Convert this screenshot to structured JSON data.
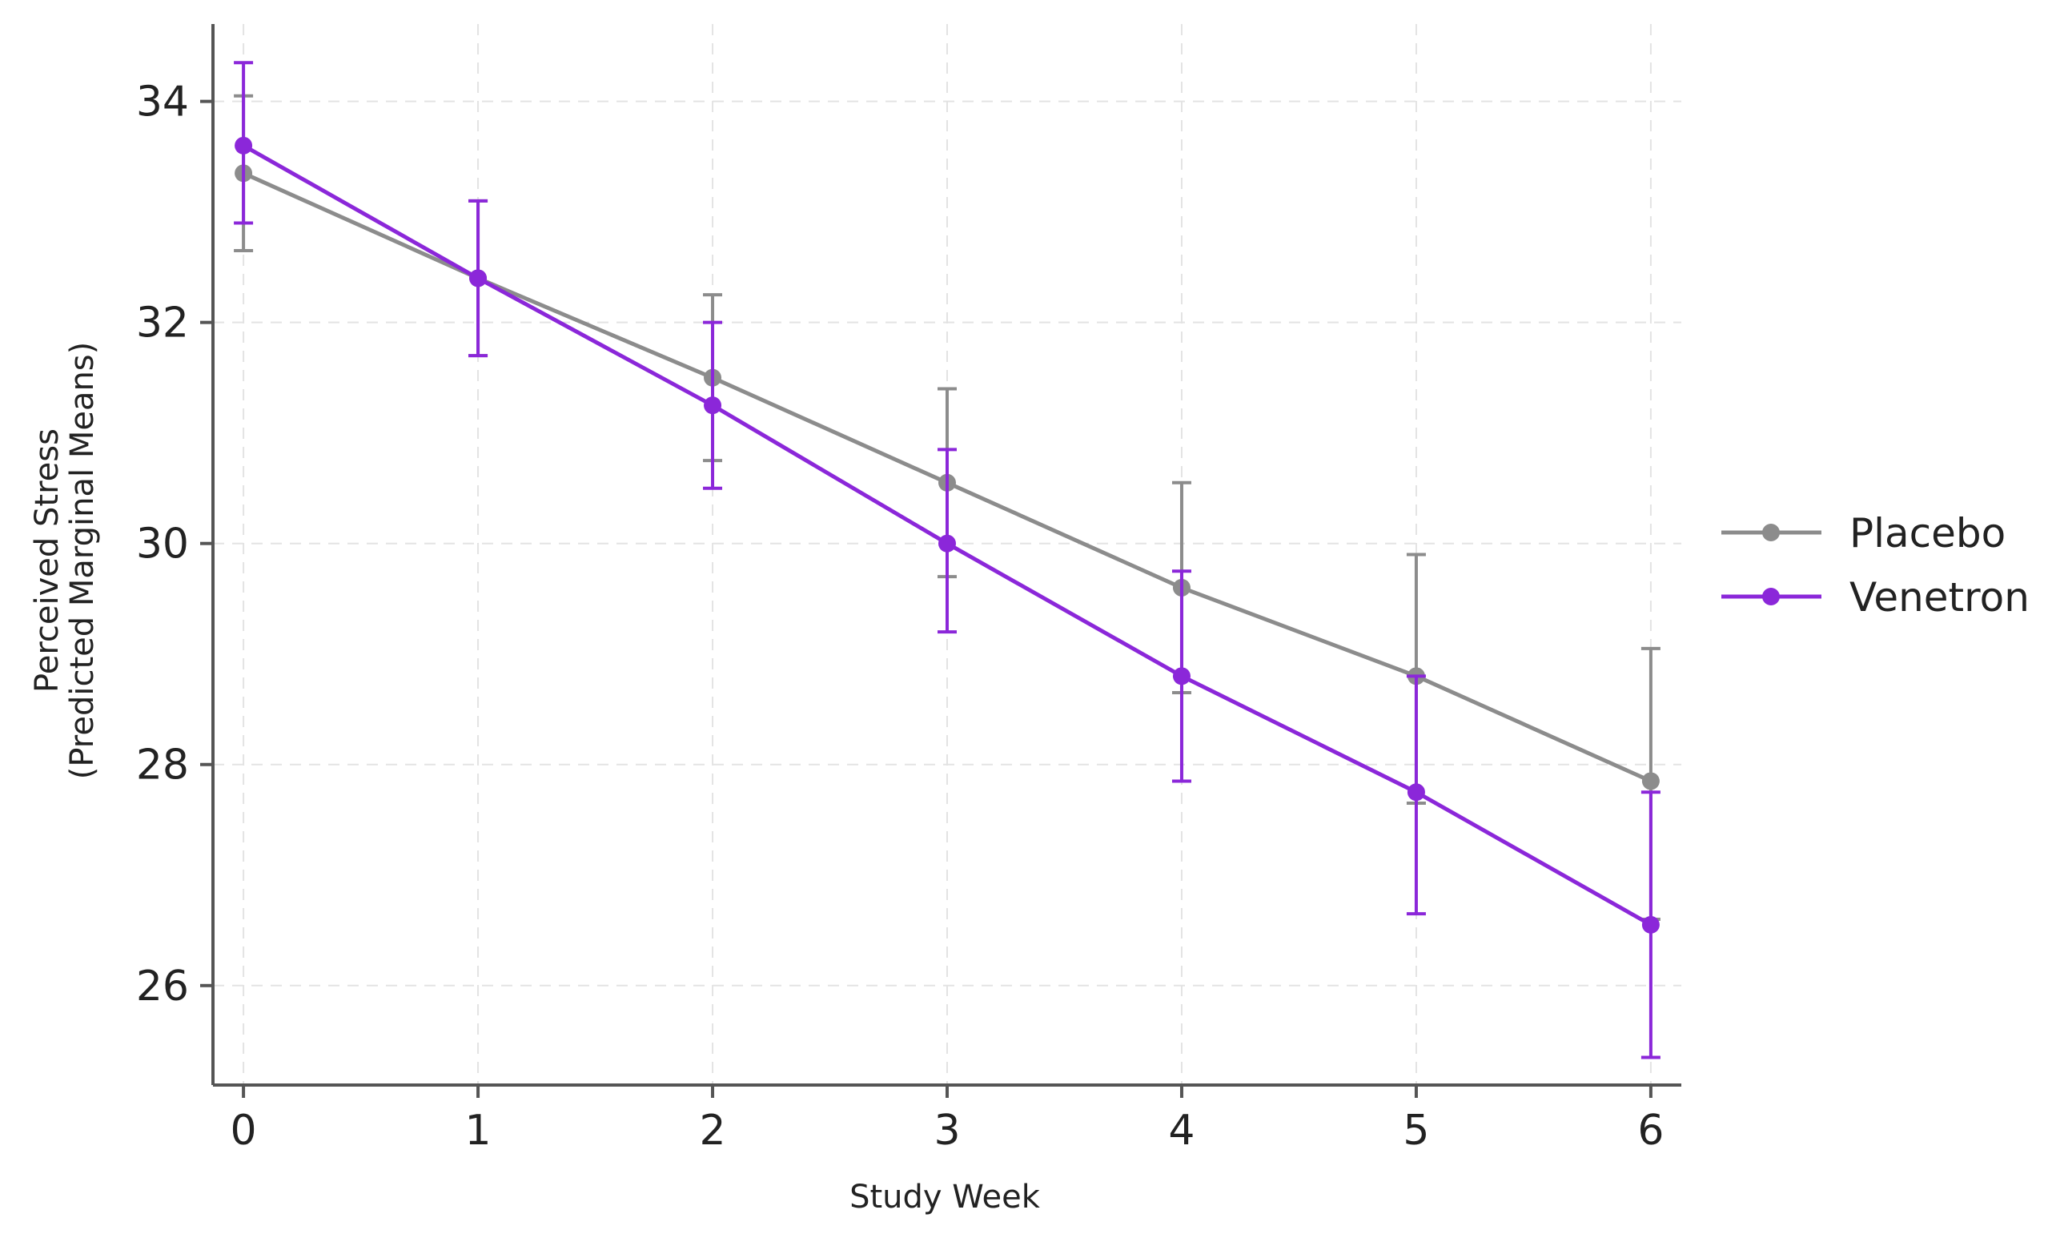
{
  "chart_data": {
    "type": "line",
    "title": "",
    "xlabel": "Study Week",
    "ylabel": [
      "Perceived Stress",
      "(Predicted Marginal Means)"
    ],
    "x": [
      0,
      1,
      2,
      3,
      4,
      5,
      6
    ],
    "xticks": [
      "0",
      "1",
      "2",
      "3",
      "4",
      "5",
      "6"
    ],
    "yticks": [
      "26",
      "28",
      "30",
      "32",
      "34"
    ],
    "ylim": [
      25.1,
      34.7
    ],
    "xlim": [
      -0.13,
      6.13
    ],
    "grid": true,
    "legend_position": "right",
    "series": [
      {
        "name": "Placebo",
        "color": "#8c8c8c",
        "values": [
          33.35,
          32.4,
          31.5,
          30.55,
          29.6,
          28.8,
          27.85
        ],
        "ci_low": [
          32.65,
          31.7,
          30.75,
          29.7,
          28.65,
          27.65,
          26.6
        ],
        "ci_high": [
          34.05,
          33.1,
          32.25,
          31.4,
          30.55,
          29.9,
          29.05
        ]
      },
      {
        "name": "Venetron",
        "color": "#8b27d9",
        "values": [
          33.6,
          32.4,
          31.25,
          30.0,
          28.8,
          27.75,
          26.55
        ],
        "ci_low": [
          32.9,
          31.7,
          30.5,
          29.2,
          27.85,
          26.65,
          25.35
        ],
        "ci_high": [
          34.35,
          33.1,
          32.0,
          30.85,
          29.75,
          28.8,
          27.75
        ]
      }
    ]
  }
}
